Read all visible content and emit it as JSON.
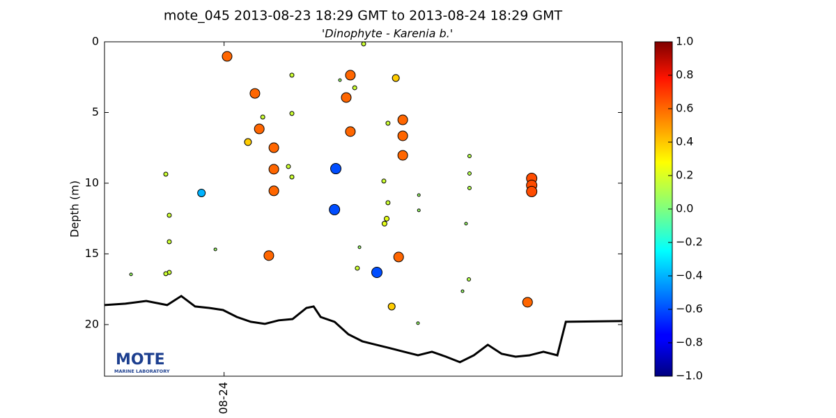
{
  "chart_data": {
    "type": "scatter",
    "title": "mote_045 2013-08-23 18:29 GMT to 2013-08-24 18:29 GMT",
    "subtitle": "'Dinophyte - Karenia b.'",
    "ylabel": "Depth (m)",
    "logo": "MOTE",
    "logo_subtitle": "MARINE LABORATORY",
    "xlim": [
      -5.5,
      18.31
    ],
    "xticks": [
      {
        "value": 0,
        "label": "08-24"
      }
    ],
    "ylim": [
      0,
      23.65
    ],
    "y_inverted": true,
    "yticks": [
      0,
      5,
      10,
      15,
      20
    ],
    "colormap": "jet",
    "clim": [
      -1,
      1
    ],
    "cticks": [
      {
        "value": -1,
        "label": "−1.0"
      },
      {
        "value": -0.8,
        "label": "−0.8"
      },
      {
        "value": -0.6,
        "label": "−0.6"
      },
      {
        "value": -0.4,
        "label": "−0.4"
      },
      {
        "value": -0.2,
        "label": "−0.2"
      },
      {
        "value": 0,
        "label": "0.0"
      },
      {
        "value": 0.2,
        "label": "0.2"
      },
      {
        "value": 0.4,
        "label": "0.4"
      },
      {
        "value": 0.6,
        "label": "0.6"
      },
      {
        "value": 0.8,
        "label": "0.8"
      },
      {
        "value": 1,
        "label": "1.0"
      }
    ],
    "x": [
      0.14,
      1.42,
      1.62,
      1.1,
      1.78,
      2.29,
      2.29,
      2.29,
      2.06,
      2.96,
      3.12,
      3.12,
      3.12,
      -1.04,
      -2.68,
      -2.52,
      -2.52,
      -2.52,
      -2.68,
      -4.28,
      -0.4,
      5.14,
      5.08,
      5.81,
      5.62,
      5.81,
      5.33,
      6.01,
      6.42,
      6.13,
      6.23,
      7.03,
      7.35,
      7.54,
      7.48,
      7.38,
      7.54,
      7.9,
      8.22,
      8.22,
      8.22,
      8.03,
      7.71,
      8.96,
      8.96,
      8.92,
      11.29,
      11.29,
      11.29,
      11.13,
      11.26,
      10.97,
      14.15,
      14.15,
      14.15,
      13.96
    ],
    "y": [
      1.03,
      3.65,
      6.16,
      7.09,
      5.32,
      7.49,
      9.01,
      10.54,
      15.12,
      8.82,
      9.56,
      2.36,
      5.07,
      10.69,
      9.36,
      12.27,
      14.14,
      16.31,
      16.4,
      16.45,
      14.68,
      8.97,
      11.87,
      2.36,
      3.94,
      6.35,
      2.71,
      3.25,
      0.15,
      16.01,
      14.53,
      16.31,
      9.85,
      11.38,
      12.51,
      12.86,
      5.76,
      2.56,
      5.52,
      6.65,
      8.03,
      15.22,
      18.72,
      10.84,
      11.92,
      19.9,
      8.08,
      9.31,
      10.34,
      12.86,
      16.8,
      17.64,
      9.66,
      10.15,
      10.59,
      18.42
    ],
    "values": [
      0.55,
      0.55,
      0.55,
      0.35,
      0.15,
      0.55,
      0.55,
      0.55,
      0.55,
      0.15,
      0.15,
      0.15,
      0.15,
      -0.4,
      0.15,
      0.15,
      0.15,
      0.15,
      0.15,
      0.05,
      0.05,
      -0.6,
      -0.6,
      0.55,
      0.55,
      0.55,
      0.05,
      0.15,
      0.15,
      0.15,
      0.05,
      -0.6,
      0.15,
      0.15,
      0.2,
      0.2,
      0.15,
      0.35,
      0.55,
      0.55,
      0.55,
      0.55,
      0.35,
      0.05,
      0.05,
      0.05,
      0.1,
      0.1,
      0.1,
      0.05,
      0.1,
      0.05,
      0.6,
      0.6,
      0.6,
      0.55
    ],
    "line": {
      "x": [
        -5.5,
        -4.54,
        -3.58,
        -2.62,
        -1.97,
        -1.33,
        -0.69,
        -0.05,
        0.59,
        1.23,
        1.87,
        2.51,
        3.15,
        3.79,
        4.12,
        4.44,
        5.08,
        5.72,
        6.36,
        7.0,
        7.64,
        8.28,
        8.92,
        9.56,
        10.21,
        10.85,
        11.49,
        12.13,
        12.77,
        13.41,
        14.05,
        14.69,
        15.33,
        15.72,
        18.31
      ],
      "y": [
        18.62,
        18.52,
        18.33,
        18.62,
        17.98,
        18.72,
        18.82,
        18.97,
        19.46,
        19.8,
        19.95,
        19.7,
        19.61,
        18.82,
        18.72,
        19.46,
        19.8,
        20.69,
        21.18,
        21.43,
        21.67,
        21.92,
        22.17,
        21.92,
        22.27,
        22.66,
        22.17,
        21.43,
        22.07,
        22.27,
        22.17,
        21.92,
        22.17,
        19.8,
        19.75
      ],
      "color": "#000000"
    }
  }
}
